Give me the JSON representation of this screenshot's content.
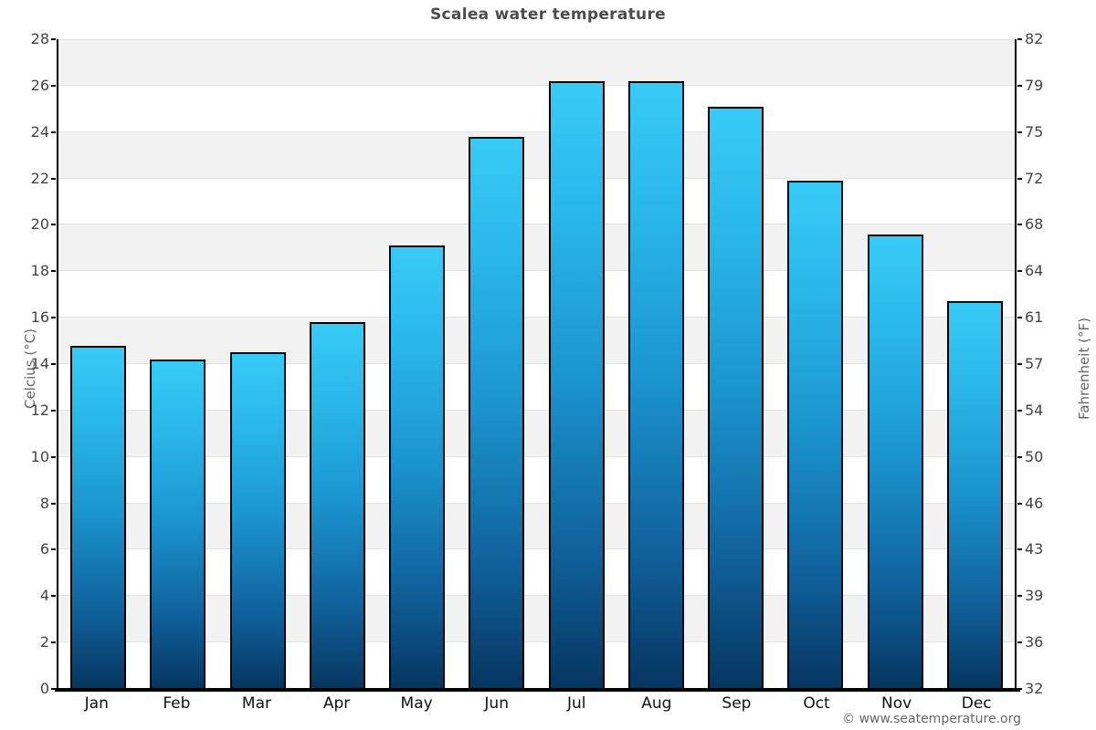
{
  "chart_data": {
    "type": "bar",
    "title": "Scalea water temperature",
    "categories": [
      "Jan",
      "Feb",
      "Mar",
      "Apr",
      "May",
      "Jun",
      "Jul",
      "Aug",
      "Sep",
      "Oct",
      "Nov",
      "Dec"
    ],
    "values": [
      14.8,
      14.2,
      14.5,
      15.8,
      19.1,
      23.8,
      26.2,
      26.2,
      25.1,
      21.9,
      19.6,
      16.7
    ],
    "unit": "°C",
    "xlabel": "",
    "ylabel_left": "Celcius (°C)",
    "ylabel_right": "Fahrenheit (°F)",
    "ylim": [
      0,
      28
    ],
    "celsius_ticks": [
      0,
      2,
      4,
      6,
      8,
      10,
      12,
      14,
      16,
      18,
      20,
      22,
      24,
      26,
      28
    ],
    "fahrenheit_ticks": [
      32,
      36,
      39,
      43,
      46,
      50,
      54,
      57,
      61,
      64,
      68,
      72,
      75,
      79,
      82
    ],
    "legend": "none",
    "grid": "horizontal bands every 2°C, alternating shading",
    "colors": {
      "bar_gradient_top": "#38cbf7",
      "bar_gradient_upper": "#29b6e9",
      "bar_gradient_mid": "#1b95d0",
      "bar_gradient_lower": "#10609a",
      "bar_gradient_bottom": "#063560",
      "bar_border": "#000000",
      "band_shade": "#f2f2f2",
      "band_plain": "#ffffff",
      "gridline": "#e2e2e2",
      "axis_line": "#000000",
      "title_text": "#4c4c4c",
      "tick_text": "#444444",
      "axis_label_text": "#666666",
      "month_text": "#111111",
      "footer_text": "#666666"
    }
  },
  "footer": {
    "copyright": "© www.seatemperature.org"
  }
}
